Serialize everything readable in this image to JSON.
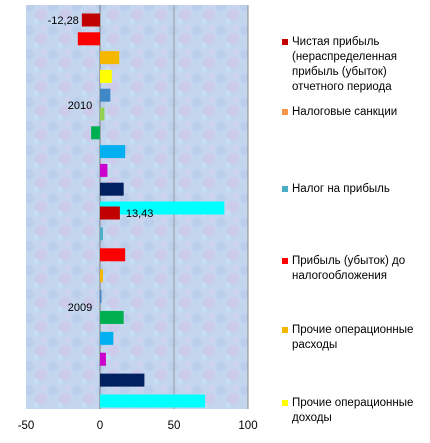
{
  "chart_data": {
    "type": "bar",
    "orientation": "horizontal",
    "xlim": [
      -50,
      100
    ],
    "xticks": [
      -50,
      0,
      50,
      100
    ],
    "groups": [
      {
        "name": "2010",
        "bars": [
          {
            "value": -12.28,
            "color": "#C00000",
            "label": "-12,28"
          },
          {
            "value": -15,
            "color": "#FF0000",
            "label": ""
          },
          {
            "value": 13,
            "color": "#F5B800",
            "label": ""
          },
          {
            "value": 8,
            "color": "#FFFF00",
            "label": ""
          },
          {
            "value": 7,
            "color": "#3F88C5",
            "label": ""
          },
          {
            "value": 3,
            "color": "#92D050",
            "label": ""
          },
          {
            "value": -6,
            "color": "#00B050",
            "label": ""
          },
          {
            "value": 17,
            "color": "#00B0F0",
            "label": ""
          },
          {
            "value": 5,
            "color": "#CC00CC",
            "label": ""
          },
          {
            "value": 16,
            "color": "#002060",
            "label": ""
          },
          {
            "value": 84,
            "color": "#00FFFF",
            "label": ""
          }
        ]
      },
      {
        "name": "2009",
        "bars": [
          {
            "value": 13.43,
            "color": "#C00000",
            "label": "13,43"
          },
          {
            "value": 2,
            "color": "#4BACC6",
            "label": ""
          },
          {
            "value": 17,
            "color": "#FF0000",
            "label": ""
          },
          {
            "value": 2,
            "color": "#F5B800",
            "label": ""
          },
          {
            "value": 1,
            "color": "#3F88C5",
            "label": ""
          },
          {
            "value": 16,
            "color": "#00B050",
            "label": ""
          },
          {
            "value": 9,
            "color": "#00B0F0",
            "label": ""
          },
          {
            "value": 4,
            "color": "#CC00CC",
            "label": ""
          },
          {
            "value": 30,
            "color": "#002060",
            "label": ""
          },
          {
            "value": 71,
            "color": "#00FFFF",
            "label": ""
          }
        ]
      }
    ],
    "legend": [
      {
        "label": "Чистая прибыль (нераспределенная прибыль  (убыток) отчетного периода",
        "color": "#C00000"
      },
      {
        "label": "Налоговые санкции",
        "color": "#F79646"
      },
      {
        "label": "Налог на прибыль",
        "color": "#4BACC6"
      },
      {
        "label": "Прибыль (убыток) до налогообложения",
        "color": "#FF0000"
      },
      {
        "label": "Прочие операционные расходы",
        "color": "#F5B800"
      },
      {
        "label": "Прочие операционные доходы",
        "color": "#FFFF00"
      }
    ],
    "legend_position": "right",
    "grid": "vertical"
  }
}
